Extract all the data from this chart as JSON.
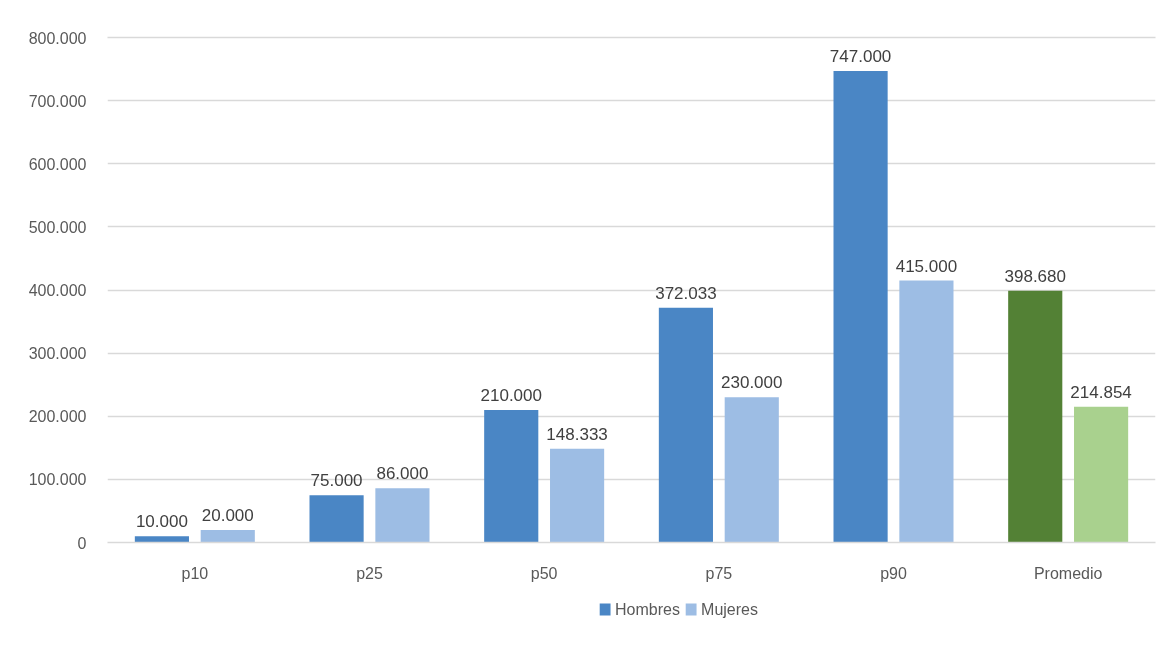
{
  "chart_data": {
    "type": "bar",
    "categories": [
      "p10",
      "p25",
      "p50",
      "p75",
      "p90",
      "Promedio"
    ],
    "series": [
      {
        "name": "Hombres",
        "colors": [
          "#4a86c5",
          "#4a86c5",
          "#4a86c5",
          "#4a86c5",
          "#4a86c5",
          "#538135"
        ],
        "values": [
          10000,
          75000,
          210000,
          372033,
          747000,
          398680
        ],
        "value_labels": [
          "10.000",
          "75.000",
          "210.000",
          "372.033",
          "747.000",
          "398.680"
        ]
      },
      {
        "name": "Mujeres",
        "colors": [
          "#9dbde4",
          "#9dbde4",
          "#9dbde4",
          "#9dbde4",
          "#9dbde4",
          "#a9d18e"
        ],
        "values": [
          20000,
          86000,
          148333,
          230000,
          415000,
          214854
        ],
        "value_labels": [
          "20.000",
          "86.000",
          "148.333",
          "230.000",
          "415.000",
          "214.854"
        ]
      }
    ],
    "ylim": [
      0,
      800000
    ],
    "yticks": [
      0,
      {
        "value": 100000,
        "label": "100.000"
      },
      {
        "value": 200000,
        "label": "200.000"
      },
      {
        "value": 300000,
        "label": "300.000"
      },
      {
        "value": 400000,
        "label": "400.000"
      },
      {
        "value": 500000,
        "label": "500.000"
      },
      {
        "value": 600000,
        "label": "600.000"
      },
      {
        "value": 700000,
        "label": "700.000"
      },
      {
        "value": 800000,
        "label": "800.000"
      }
    ],
    "grid": "y",
    "legend": "bottom"
  }
}
